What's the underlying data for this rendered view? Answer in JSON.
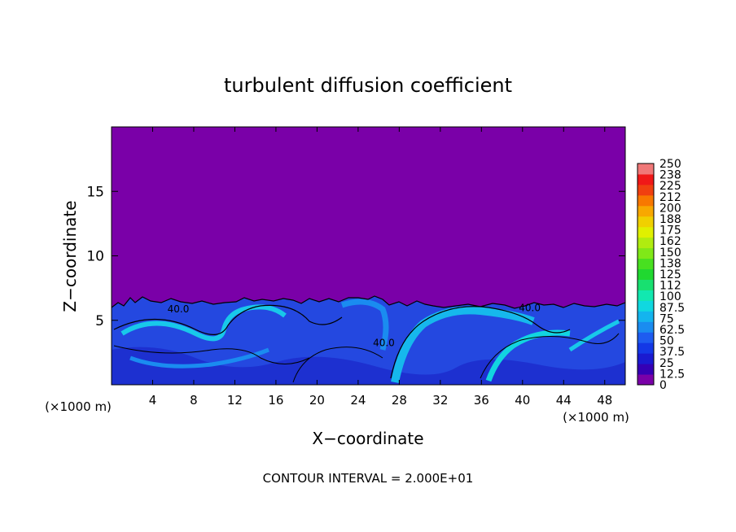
{
  "chart_data": {
    "type": "heatmap",
    "title": "turbulent diffusion coefficient",
    "xlabel": "X−coordinate",
    "ylabel": "Z−coordinate",
    "x_unit_left": "(×1000 m)",
    "x_unit_right": "(×1000 m)",
    "xlim": [
      0,
      50
    ],
    "ylim": [
      0,
      20
    ],
    "x_ticks": [
      4,
      8,
      12,
      16,
      20,
      24,
      28,
      32,
      36,
      40,
      44,
      48
    ],
    "x_tick_labels": [
      "4",
      "8",
      "12",
      "16",
      "20",
      "24",
      "28",
      "32",
      "36",
      "40",
      "44",
      "48"
    ],
    "y_ticks": [
      5,
      10,
      15
    ],
    "y_tick_labels": [
      "5",
      "10",
      "15"
    ],
    "contour_interval_text": "CONTOUR INTERVAL = 2.000E+01",
    "contour_labels": [
      {
        "text": "40.0",
        "x": 6.5,
        "z": 5.6
      },
      {
        "text": "40.0",
        "x": 26.5,
        "z": 3.0
      },
      {
        "text": "40.0",
        "x": 40.7,
        "z": 5.7
      }
    ],
    "colorbar": {
      "levels": [
        "0",
        "12.5",
        "25",
        "37.5",
        "50",
        "62.5",
        "75",
        "87.5",
        "100",
        "112",
        "125",
        "138",
        "150",
        "162",
        "175",
        "188",
        "200",
        "212",
        "225",
        "238",
        "250"
      ],
      "colors": [
        "#7a00a8",
        "#3500b5",
        "#1a1ad0",
        "#1438e6",
        "#1e5cf0",
        "#1a8cf0",
        "#14b4ee",
        "#10d8e0",
        "#12e8b0",
        "#18e070",
        "#20d830",
        "#48e020",
        "#80e818",
        "#b0ec10",
        "#e0f000",
        "#f0d000",
        "#f8a800",
        "#f87800",
        "#f04010",
        "#f01818",
        "#f07878"
      ]
    },
    "field_description_values": {
      "upper_region_value": "0",
      "turbulent_layer_top_z": 6.5
    }
  }
}
